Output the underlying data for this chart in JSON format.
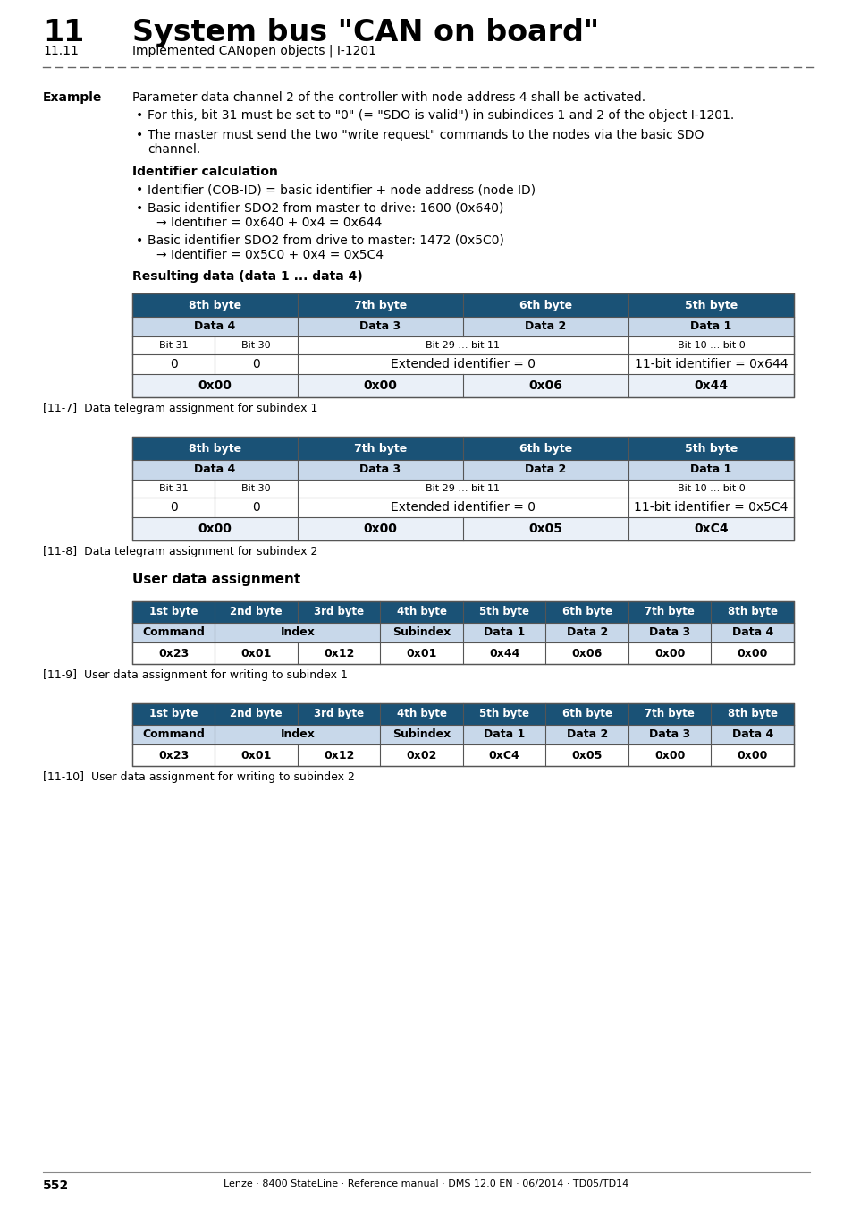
{
  "page_title": "11",
  "page_title_text": "System bus \"CAN on board\"",
  "subtitle": "11.11",
  "subtitle_text": "Implemented CANopen objects | I-1201",
  "section_label": "Example",
  "para1": "Parameter data channel 2 of the controller with node address 4 shall be activated.",
  "bullet1": "For this, bit 31 must be set to \"0\" (= \"SDO is valid\") in subindices 1 and 2 of the object I-1201.",
  "bullet2a": "The master must send the two \"write request\" commands to the nodes via the basic SDO",
  "bullet2b": "channel.",
  "subsection": "Identifier calculation",
  "id_bullet1": "Identifier (COB-ID) = basic identifier + node address (node ID)",
  "id_bullet2a": "Basic identifier SDO2 from master to drive: 1600 (0x640)",
  "id_bullet2b": "→ Identifier = 0x640 + 0x4 = 0x644",
  "id_bullet3a": "Basic identifier SDO2 from drive to master: 1472 (0x5C0)",
  "id_bullet3b": "→ Identifier = 0x5C0 + 0x4 = 0x5C4",
  "table_title1": "Resulting data (data 1 ... data 4)",
  "header_bg": "#1A5276",
  "subheader_bg": "#C8D8EA",
  "row_bg": "#FFFFFF",
  "alt_row_bg": "#EAF0F8",
  "border_color": "#555555",
  "table1_headers": [
    "8th byte",
    "7th byte",
    "6th byte",
    "5th byte"
  ],
  "table1_subheaders": [
    "Data 4",
    "Data 3",
    "Data 2",
    "Data 1"
  ],
  "table1_bit_row": [
    "Bit 31",
    "Bit 30",
    "Bit 29 … bit 11",
    "Bit 10 … bit 0"
  ],
  "table1_val_row": [
    "0",
    "0",
    "Extended identifier = 0",
    "11-bit identifier = 0x644"
  ],
  "table1_hex_row": [
    "0x00",
    "0x00",
    "0x06",
    "0x44"
  ],
  "caption1": "[11-7]  Data telegram assignment for subindex 1",
  "table2_headers": [
    "8th byte",
    "7th byte",
    "6th byte",
    "5th byte"
  ],
  "table2_subheaders": [
    "Data 4",
    "Data 3",
    "Data 2",
    "Data 1"
  ],
  "table2_bit_row": [
    "Bit 31",
    "Bit 30",
    "Bit 29 … bit 11",
    "Bit 10 … bit 0"
  ],
  "table2_val_row": [
    "0",
    "0",
    "Extended identifier = 0",
    "11-bit identifier = 0x5C4"
  ],
  "table2_hex_row": [
    "0x00",
    "0x00",
    "0x05",
    "0xC4"
  ],
  "caption2": "[11-8]  Data telegram assignment for subindex 2",
  "user_section": "User data assignment",
  "table3_headers": [
    "1st byte",
    "2nd byte",
    "3rd byte",
    "4th byte",
    "5th byte",
    "6th byte",
    "7th byte",
    "8th byte"
  ],
  "table3_sub": [
    "Command",
    "Index",
    "Index",
    "Subindex",
    "Data 1",
    "Data 2",
    "Data 3",
    "Data 4"
  ],
  "table3_vals": [
    "0x23",
    "0x01",
    "0x12",
    "0x01",
    "0x44",
    "0x06",
    "0x00",
    "0x00"
  ],
  "caption3": "[11-9]  User data assignment for writing to subindex 1",
  "table4_headers": [
    "1st byte",
    "2nd byte",
    "3rd byte",
    "4th byte",
    "5th byte",
    "6th byte",
    "7th byte",
    "8th byte"
  ],
  "table4_sub": [
    "Command",
    "Index",
    "Index",
    "Subindex",
    "Data 1",
    "Data 2",
    "Data 3",
    "Data 4"
  ],
  "table4_vals": [
    "0x23",
    "0x01",
    "0x12",
    "0x02",
    "0xC4",
    "0x05",
    "0x00",
    "0x00"
  ],
  "caption4": "[11-10]  User data assignment for writing to subindex 2",
  "footer_page": "552",
  "footer_right": "Lenze · 8400 StateLine · Reference manual · DMS 12.0 EN · 06/2014 · TD05/TD14"
}
